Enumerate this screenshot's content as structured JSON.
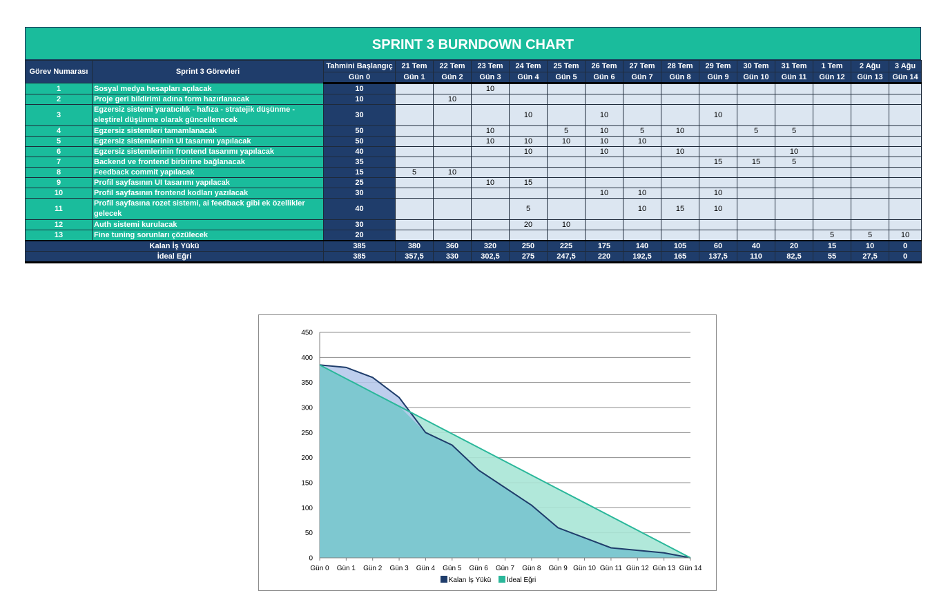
{
  "title": "SPRINT 3 BURNDOWN CHART",
  "headers": {
    "task_no": "Görev Numarası",
    "tasks": "Sprint 3 Görevleri",
    "estimate": "Tahmini Başlangıç",
    "day0": "Gün 0",
    "dates": [
      "21 Tem",
      "22 Tem",
      "23 Tem",
      "24 Tem",
      "25 Tem",
      "26 Tem",
      "27 Tem",
      "28 Tem",
      "29 Tem",
      "30 Tem",
      "31 Tem",
      "1 Tem",
      "2 Ağu",
      "3 Ağu"
    ],
    "days": [
      "Gün 1",
      "Gün 2",
      "Gün 3",
      "Gün 4",
      "Gün 5",
      "Gün 6",
      "Gün 7",
      "Gün 8",
      "Gün 9",
      "Gün 10",
      "Gün 11",
      "Gün 12",
      "Gün 13",
      "Gün 14"
    ]
  },
  "rows": [
    {
      "no": "1",
      "task": "Sosyal medya hesapları açılacak",
      "est": "10",
      "cells": [
        "",
        "",
        "10",
        "",
        "",
        "",
        "",
        "",
        "",
        "",
        "",
        "",
        "",
        ""
      ]
    },
    {
      "no": "2",
      "task": "Proje geri bildirimi adına form hazırlanacak",
      "est": "10",
      "cells": [
        "",
        "10",
        "",
        "",
        "",
        "",
        "",
        "",
        "",
        "",
        "",
        "",
        "",
        ""
      ]
    },
    {
      "no": "3",
      "task": "Egzersiz sistemi yaratıcılık - hafıza - stratejik düşünme -   eleştirel düşünme olarak güncellenecek",
      "est": "30",
      "cells": [
        "",
        "",
        "",
        "10",
        "",
        "10",
        "",
        "",
        "10",
        "",
        "",
        "",
        "",
        ""
      ]
    },
    {
      "no": "4",
      "task": "Egzersiz sistemleri tamamlanacak",
      "est": "50",
      "cells": [
        "",
        "",
        "10",
        "",
        "5",
        "10",
        "5",
        "10",
        "",
        "5",
        "5",
        "",
        "",
        ""
      ]
    },
    {
      "no": "5",
      "task": "Egzersiz sistemlerinin UI tasarımı yapılacak",
      "est": "50",
      "cells": [
        "",
        "",
        "10",
        "10",
        "10",
        "10",
        "10",
        "",
        "",
        "",
        "",
        "",
        "",
        ""
      ]
    },
    {
      "no": "6",
      "task": "Egzersiz sistemlerinin frontend tasarımı yapılacak",
      "est": "40",
      "cells": [
        "",
        "",
        "",
        "10",
        "",
        "10",
        "",
        "10",
        "",
        "",
        "10",
        "",
        "",
        ""
      ]
    },
    {
      "no": "7",
      "task": "Backend ve frontend birbirine bağlanacak",
      "est": "35",
      "cells": [
        "",
        "",
        "",
        "",
        "",
        "",
        "",
        "",
        "15",
        "15",
        "5",
        "",
        "",
        ""
      ]
    },
    {
      "no": "8",
      "task": "Feedback commit yapılacak",
      "est": "15",
      "cells": [
        "5",
        "10",
        "",
        "",
        "",
        "",
        "",
        "",
        "",
        "",
        "",
        "",
        "",
        ""
      ]
    },
    {
      "no": "9",
      "task": "Profil sayfasının UI tasarımı yapılacak",
      "est": "25",
      "cells": [
        "",
        "",
        "10",
        "15",
        "",
        "",
        "",
        "",
        "",
        "",
        "",
        "",
        "",
        ""
      ]
    },
    {
      "no": "10",
      "task": "Profil sayfasının frontend kodları yazılacak",
      "est": "30",
      "cells": [
        "",
        "",
        "",
        "",
        "",
        "10",
        "10",
        "",
        "10",
        "",
        "",
        "",
        "",
        ""
      ]
    },
    {
      "no": "11",
      "task": "Profil sayfasına rozet sistemi, ai feedback gibi ek özellikler gelecek",
      "est": "40",
      "cells": [
        "",
        "",
        "",
        "5",
        "",
        "",
        "10",
        "15",
        "10",
        "",
        "",
        "",
        "",
        ""
      ]
    },
    {
      "no": "12",
      "task": "Auth sistemi kurulacak",
      "est": "30",
      "cells": [
        "",
        "",
        "",
        "20",
        "10",
        "",
        "",
        "",
        "",
        "",
        "",
        "",
        "",
        ""
      ]
    },
    {
      "no": "13",
      "task": "Fine tuning sorunları çözülecek",
      "est": "20",
      "cells": [
        "",
        "",
        "",
        "",
        "",
        "",
        "",
        "",
        "",
        "",
        "",
        "5",
        "5",
        "10"
      ]
    }
  ],
  "summary": {
    "remaining_label": "Kalan İş Yükü",
    "remaining": [
      "385",
      "380",
      "360",
      "320",
      "250",
      "225",
      "175",
      "140",
      "105",
      "60",
      "40",
      "20",
      "15",
      "10",
      "0"
    ],
    "ideal_label": "İdeal Eğri",
    "ideal": [
      "385",
      "357,5",
      "330",
      "302,5",
      "275",
      "247,5",
      "220",
      "192,5",
      "165",
      "137,5",
      "110",
      "82,5",
      "55",
      "27,5",
      "0"
    ]
  },
  "chart_data": {
    "type": "area",
    "categories": [
      "Gün 0",
      "Gün 1",
      "Gün 2",
      "Gün 3",
      "Gün 4",
      "Gün 5",
      "Gün 6",
      "Gün 7",
      "Gün 8",
      "Gün 9",
      "Gün 10",
      "Gün 11",
      "Gün 12",
      "Gün 13",
      "Gün 14"
    ],
    "series": [
      {
        "name": "Kalan İş Yükü",
        "values": [
          385,
          380,
          360,
          320,
          250,
          225,
          175,
          140,
          105,
          60,
          40,
          20,
          15,
          10,
          0
        ],
        "color": "#1f3d6b",
        "fill": "#7ec8d0"
      },
      {
        "name": "İdeal Eğri",
        "values": [
          385,
          357.5,
          330,
          302.5,
          275,
          247.5,
          220,
          192.5,
          165,
          137.5,
          110,
          82.5,
          55,
          27.5,
          0
        ],
        "color": "#2ab79a",
        "fill": "#a9e6d6"
      }
    ],
    "yticks": [
      0,
      50,
      100,
      150,
      200,
      250,
      300,
      350,
      400,
      450
    ],
    "ylim": [
      0,
      450
    ],
    "grid": true,
    "legend": "bottom",
    "title": "",
    "xlabel": "",
    "ylabel": ""
  }
}
